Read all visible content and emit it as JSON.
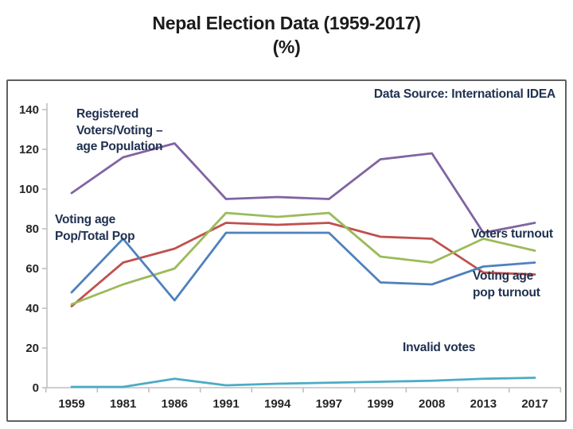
{
  "title": {
    "line1": "Nepal Election Data (1959-2017)",
    "line2": "(%)"
  },
  "annotations": {
    "data_source": "Data Source: International IDEA",
    "registered_voters_label": "Registered\nVoters/Voting –\nage Population",
    "voting_age_pop_label": "Voting age\nPop/Total Pop",
    "voters_turnout_label": "Voters turnout",
    "voting_age_pop_turnout_label": "Voting age\npop turnout",
    "invalid_votes_label": "Invalid votes"
  },
  "colors": {
    "title_text": "#1c1c1c",
    "annotation_text": "#203150",
    "tick_label": "#262626",
    "chart_border": "#606060"
  },
  "chart_data": {
    "type": "line",
    "title": "Nepal Election Data (1959-2017) (%)",
    "ylabel": "",
    "xlabel": "",
    "ylim": [
      0,
      140
    ],
    "ytick_step": 20,
    "grid": false,
    "legend_position": "inline-labels",
    "axis_color": "#BFBFBF",
    "categories": [
      "1959",
      "1981",
      "1986",
      "1991",
      "1994",
      "1997",
      "1999",
      "2008",
      "2013",
      "2017"
    ],
    "series": [
      {
        "id": "voting-age-pop-turnout",
        "name": "Voting age pop turnout",
        "color": "#C0504D",
        "values": [
          41,
          63,
          70,
          83,
          82,
          83,
          76,
          75,
          58,
          57
        ]
      },
      {
        "id": "voters-turnout",
        "name": "Voters turnout",
        "color": "#9BBB59",
        "values": [
          42,
          52,
          60,
          88,
          86,
          88,
          66,
          63,
          75,
          69
        ]
      },
      {
        "id": "voting-age-pop-total-pop",
        "name": "Voting age Pop/Total Pop",
        "color": "#4F81BD",
        "values": [
          48,
          75,
          44,
          78,
          78,
          78,
          53,
          52,
          61,
          63
        ]
      },
      {
        "id": "registered-voters-vap",
        "name": "Registered Voters/Voting-age Population",
        "color": "#8064A2",
        "values": [
          98,
          116,
          123,
          95,
          96,
          95,
          115,
          118,
          78,
          83
        ]
      },
      {
        "id": "invalid-votes",
        "name": "Invalid votes",
        "color": "#4BACC6",
        "values": [
          0.4,
          0.4,
          4.5,
          1.2,
          2,
          2.5,
          3,
          3.5,
          4.5,
          5
        ]
      }
    ]
  }
}
